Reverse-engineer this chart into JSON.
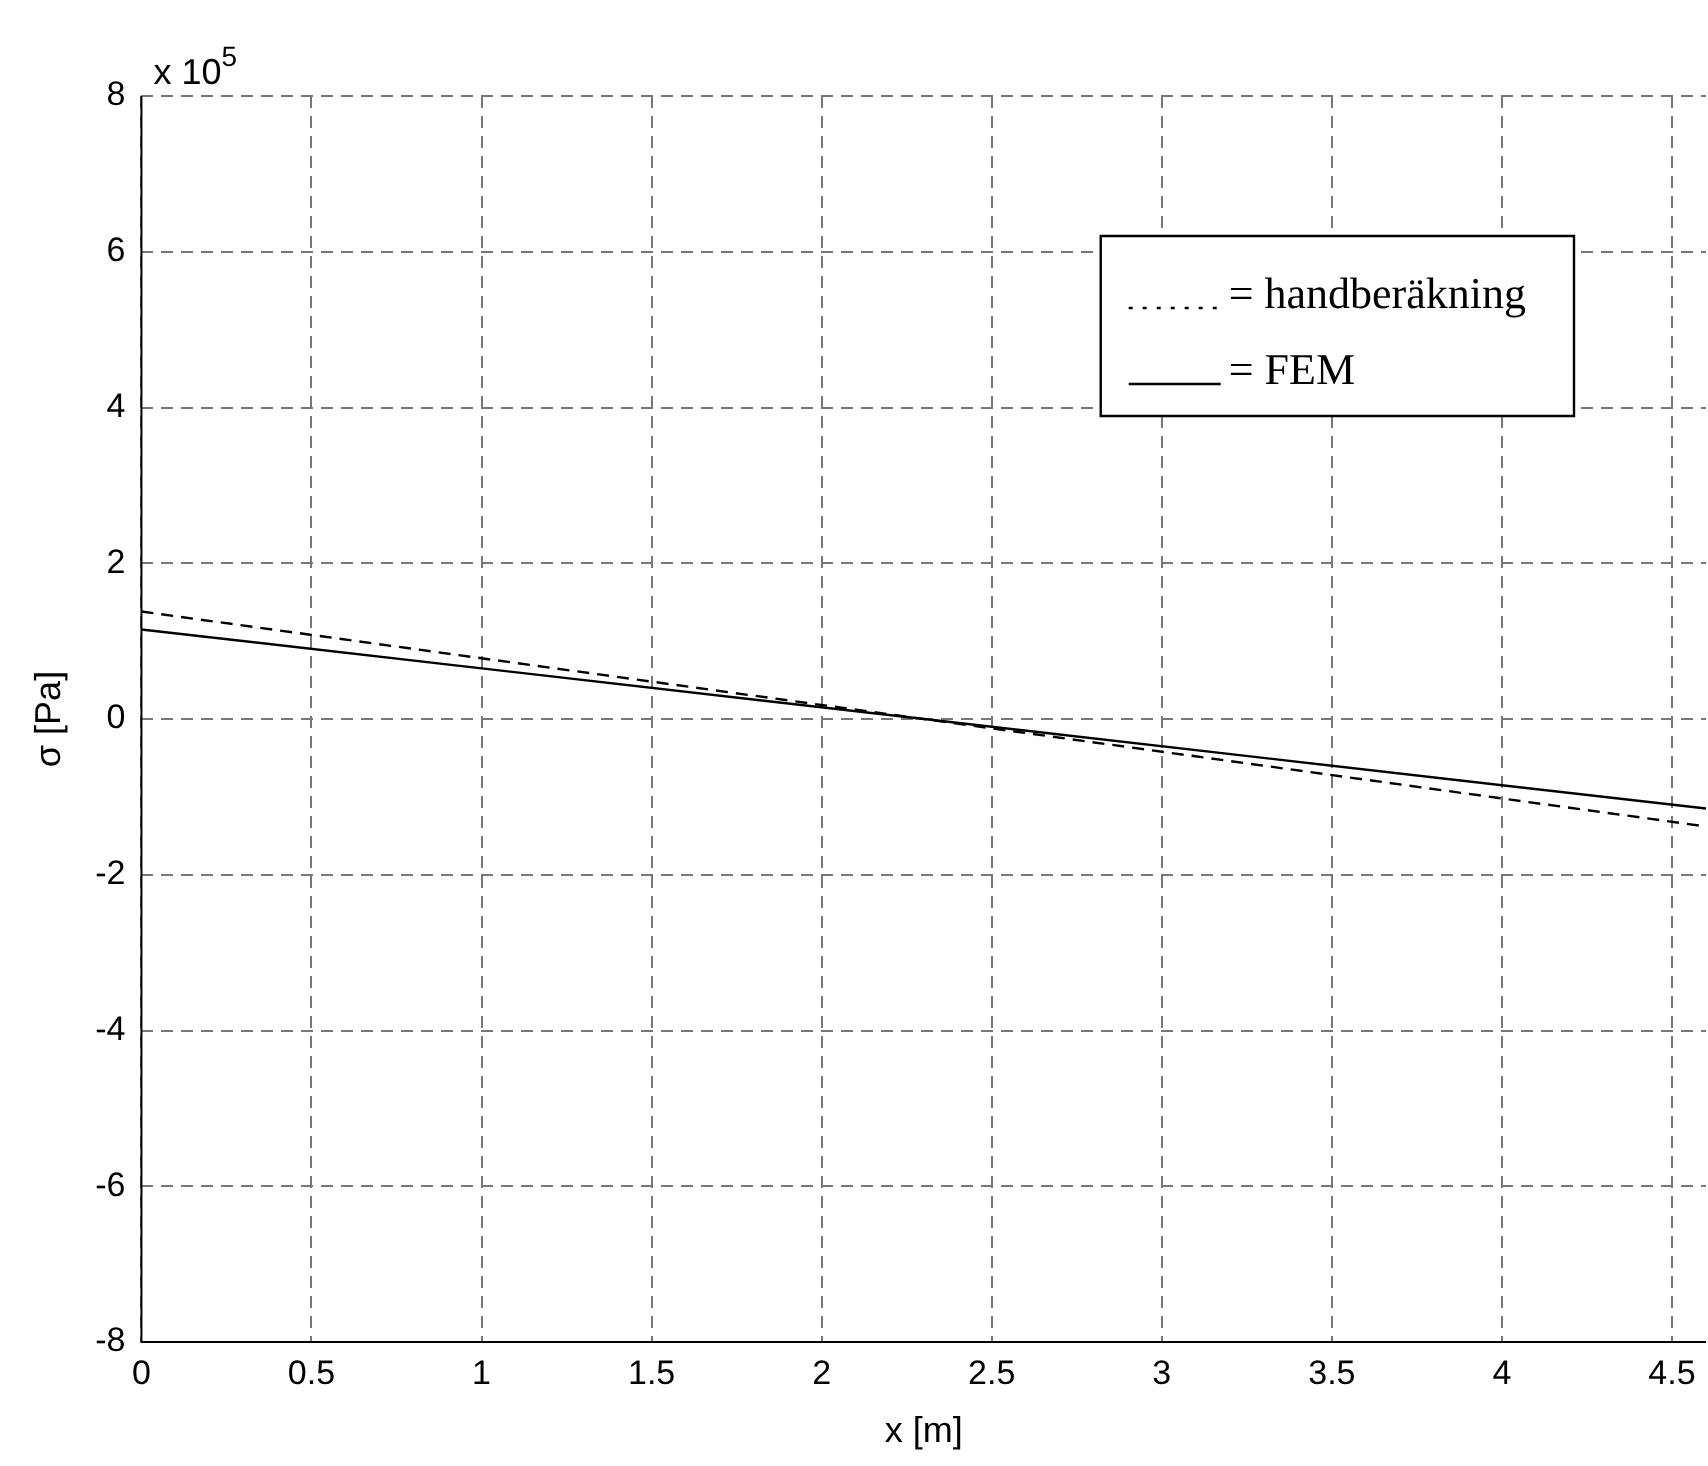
{
  "chart_data": {
    "type": "line",
    "xlabel": "x [m]",
    "ylabel": "σ [Pa]",
    "xlim": [
      0,
      4.6
    ],
    "xticks": [
      0,
      0.5,
      1,
      1.5,
      2,
      2.5,
      3,
      3.5,
      4,
      4.5
    ],
    "ylim": [
      -8,
      8
    ],
    "yticks": [
      -8,
      -6,
      -4,
      -2,
      0,
      2,
      4,
      6,
      8
    ],
    "x": [
      0,
      4.6
    ],
    "grid": true,
    "legend": "top right",
    "marker": "none",
    "annotations": [
      "x 10$^{5}$"
    ],
    "series": [
      {
        "name": "= handberäkning",
        "color": "#000000",
        "line_style": "dashed",
        "values": [
          1.38,
          -1.38
        ]
      },
      {
        "name": "= FEM",
        "color": "#000000",
        "line_style": "solid",
        "values": [
          1.15,
          -1.15
        ]
      }
    ]
  }
}
